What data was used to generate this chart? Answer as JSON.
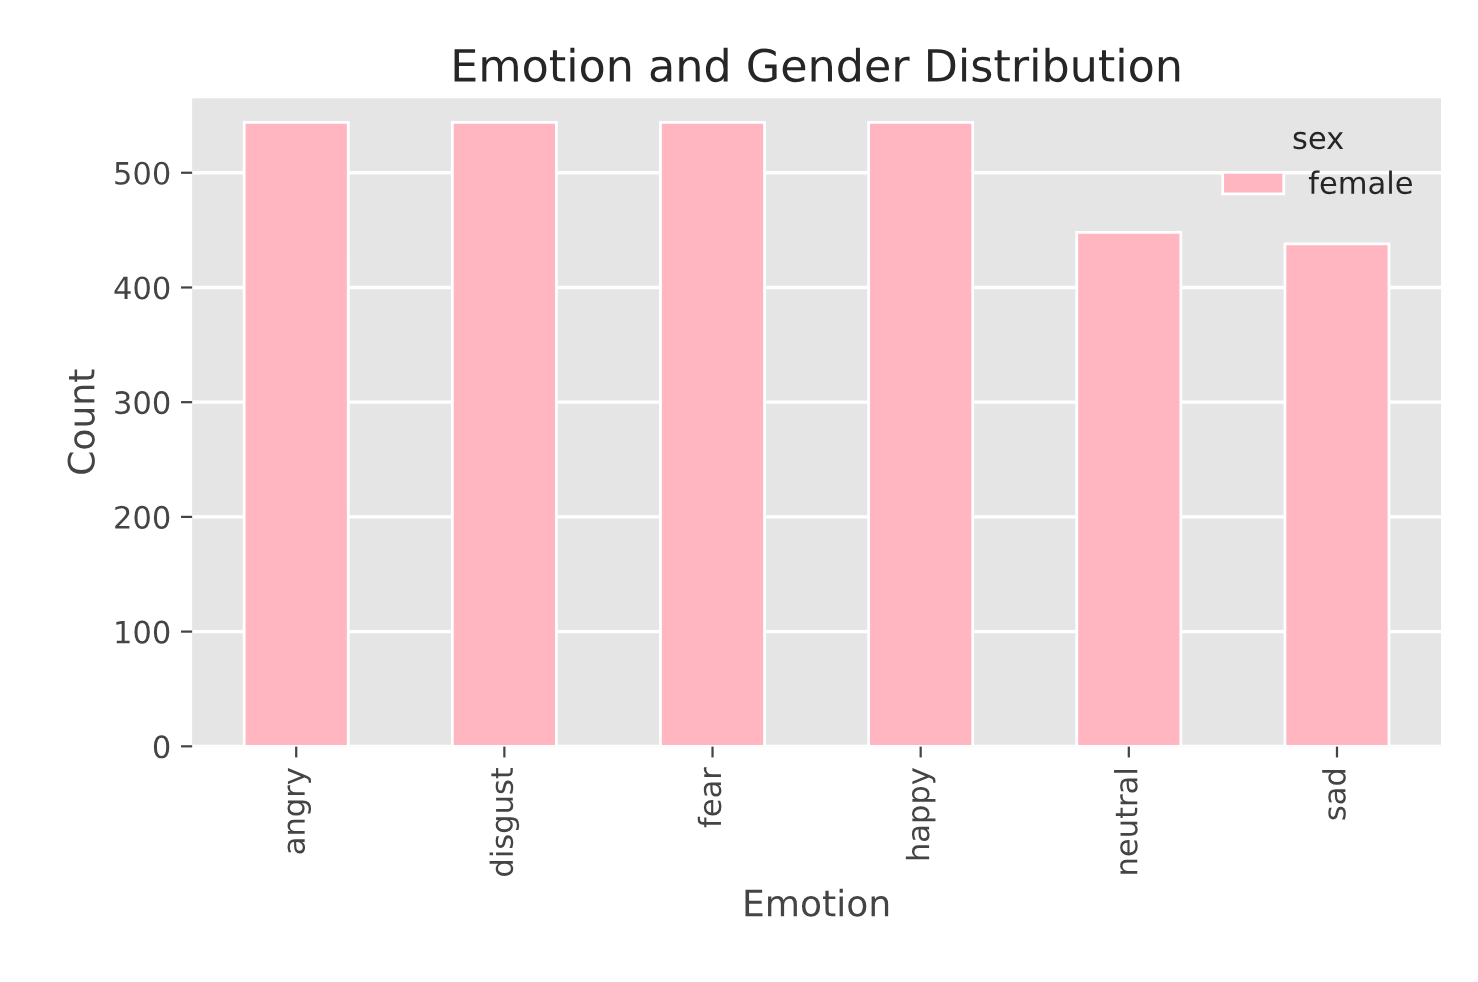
{
  "chart_data": {
    "type": "bar",
    "title": "Emotion and Gender Distribution",
    "xlabel": "Emotion",
    "ylabel": "Count",
    "categories": [
      "angry",
      "disgust",
      "fear",
      "happy",
      "neutral",
      "sad"
    ],
    "series": [
      {
        "name": "female",
        "color": "#ffb6c1",
        "values": [
          544,
          544,
          544,
          544,
          448,
          438
        ]
      }
    ],
    "legend_title": "sex",
    "legend": "top right",
    "ylim": [
      0,
      565
    ],
    "yticks": [
      0,
      100,
      200,
      300,
      400,
      500
    ],
    "grid": "y"
  }
}
